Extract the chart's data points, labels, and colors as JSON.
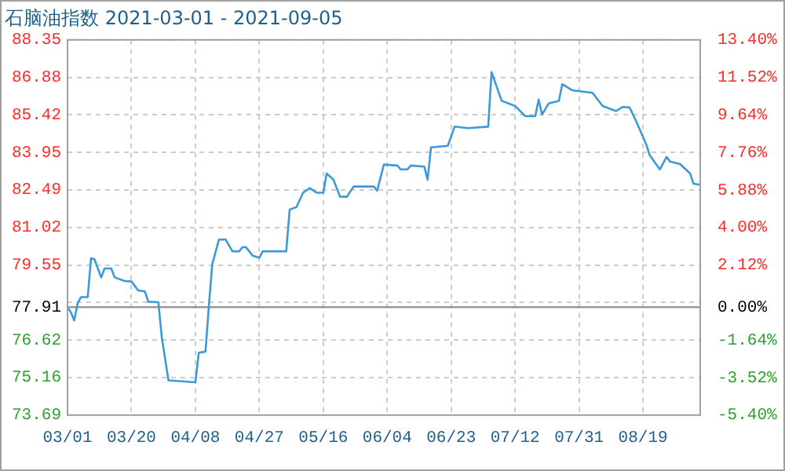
{
  "chart_data": {
    "type": "line",
    "title": "石脑油指数 2021-03-01 - 2021-09-05",
    "x": [
      "2021-03-01",
      "2021-03-02",
      "2021-03-03",
      "2021-03-04",
      "2021-03-05",
      "2021-03-07",
      "2021-03-08",
      "2021-03-09",
      "2021-03-11",
      "2021-03-12",
      "2021-03-14",
      "2021-03-15",
      "2021-03-18",
      "2021-03-20",
      "2021-03-22",
      "2021-03-24",
      "2021-03-25",
      "2021-03-28",
      "2021-03-29",
      "2021-03-31",
      "2021-04-04",
      "2021-04-08",
      "2021-04-09",
      "2021-04-11",
      "2021-04-12",
      "2021-04-13",
      "2021-04-15",
      "2021-04-17",
      "2021-04-19",
      "2021-04-21",
      "2021-04-22",
      "2021-04-23",
      "2021-04-25",
      "2021-04-27",
      "2021-04-28",
      "2021-05-05",
      "2021-05-06",
      "2021-05-07",
      "2021-05-08",
      "2021-05-10",
      "2021-05-12",
      "2021-05-14",
      "2021-05-16",
      "2021-05-17",
      "2021-05-19",
      "2021-05-21",
      "2021-05-23",
      "2021-05-25",
      "2021-05-31",
      "2021-06-01",
      "2021-06-03",
      "2021-06-07",
      "2021-06-08",
      "2021-06-10",
      "2021-06-11",
      "2021-06-15",
      "2021-06-16",
      "2021-06-17",
      "2021-06-22",
      "2021-06-24",
      "2021-06-28",
      "2021-07-04",
      "2021-07-05",
      "2021-07-08",
      "2021-07-12",
      "2021-07-15",
      "2021-07-18",
      "2021-07-19",
      "2021-07-20",
      "2021-07-22",
      "2021-07-25",
      "2021-07-26",
      "2021-07-29",
      "2021-08-04",
      "2021-08-07",
      "2021-08-11",
      "2021-08-13",
      "2021-08-15",
      "2021-08-17",
      "2021-08-20",
      "2021-08-21",
      "2021-08-24",
      "2021-08-26",
      "2021-08-27",
      "2021-08-30",
      "2021-09-02",
      "2021-09-03",
      "2021-09-05"
    ],
    "series": [
      {
        "color": "#3c9ad9",
        "values": [
          77.89,
          77.71,
          77.39,
          78.06,
          78.3,
          78.3,
          79.82,
          79.78,
          79.07,
          79.42,
          79.42,
          79.07,
          78.93,
          78.91,
          78.56,
          78.52,
          78.12,
          78.1,
          76.74,
          75.05,
          75.01,
          74.97,
          76.13,
          76.17,
          77.95,
          79.58,
          80.55,
          80.55,
          80.09,
          80.09,
          80.25,
          80.25,
          79.92,
          79.84,
          80.09,
          80.09,
          81.71,
          81.77,
          81.81,
          82.38,
          82.56,
          82.38,
          82.38,
          83.13,
          82.89,
          82.22,
          82.22,
          82.62,
          82.62,
          82.46,
          83.48,
          83.44,
          83.29,
          83.29,
          83.44,
          83.4,
          82.89,
          84.15,
          84.21,
          84.96,
          84.9,
          84.96,
          87.09,
          85.97,
          85.77,
          85.37,
          85.37,
          86.02,
          85.43,
          85.87,
          85.97,
          86.62,
          86.38,
          86.28,
          85.77,
          85.57,
          85.73,
          85.71,
          85.16,
          84.25,
          83.84,
          83.29,
          83.78,
          83.6,
          83.5,
          83.13,
          82.73,
          82.69
        ]
      }
    ],
    "xlim": [
      "2021-03-01",
      "2021-09-05"
    ],
    "xticks": [
      {
        "value": "2021-03-01",
        "label": "03/01"
      },
      {
        "value": "2021-03-20",
        "label": "03/20"
      },
      {
        "value": "2021-04-08",
        "label": "04/08"
      },
      {
        "value": "2021-04-27",
        "label": "04/27"
      },
      {
        "value": "2021-05-16",
        "label": "05/16"
      },
      {
        "value": "2021-06-04",
        "label": "06/04"
      },
      {
        "value": "2021-06-23",
        "label": "06/23"
      },
      {
        "value": "2021-07-12",
        "label": "07/12"
      },
      {
        "value": "2021-07-31",
        "label": "07/31"
      },
      {
        "value": "2021-08-19",
        "label": "08/19"
      }
    ],
    "ylim": [
      73.69,
      88.35
    ],
    "yticks": [
      73.69,
      75.16,
      76.62,
      77.91,
      {
        "value": 78.09,
        "label": null
      },
      79.55,
      81.02,
      82.49,
      83.95,
      85.42,
      86.88,
      88.35
    ],
    "y2lim": [
      -5.4,
      13.4
    ],
    "y2ticks": [
      {
        "value": -5.4,
        "label": "-5.40%"
      },
      {
        "value": -3.52,
        "label": "-3.52%"
      },
      {
        "value": -1.64,
        "label": "-1.64%"
      },
      {
        "value": 0,
        "label": "0.00%"
      },
      {
        "value": 0.24,
        "label": null
      },
      {
        "value": 2.12,
        "label": "2.12%"
      },
      {
        "value": 4,
        "label": "4.00%"
      },
      {
        "value": 5.88,
        "label": "5.88%"
      },
      {
        "value": 7.76,
        "label": "7.76%"
      },
      {
        "value": 9.64,
        "label": "9.64%"
      },
      {
        "value": 11.52,
        "label": "11.52%"
      },
      {
        "value": 13.4,
        "label": "13.40%"
      }
    ],
    "ref_lines": [
      {
        "axis": "y",
        "value": 77.91,
        "color": "#999999",
        "line_style": "solid"
      }
    ],
    "grid": true,
    "marker": "none",
    "line_style": "solid"
  }
}
